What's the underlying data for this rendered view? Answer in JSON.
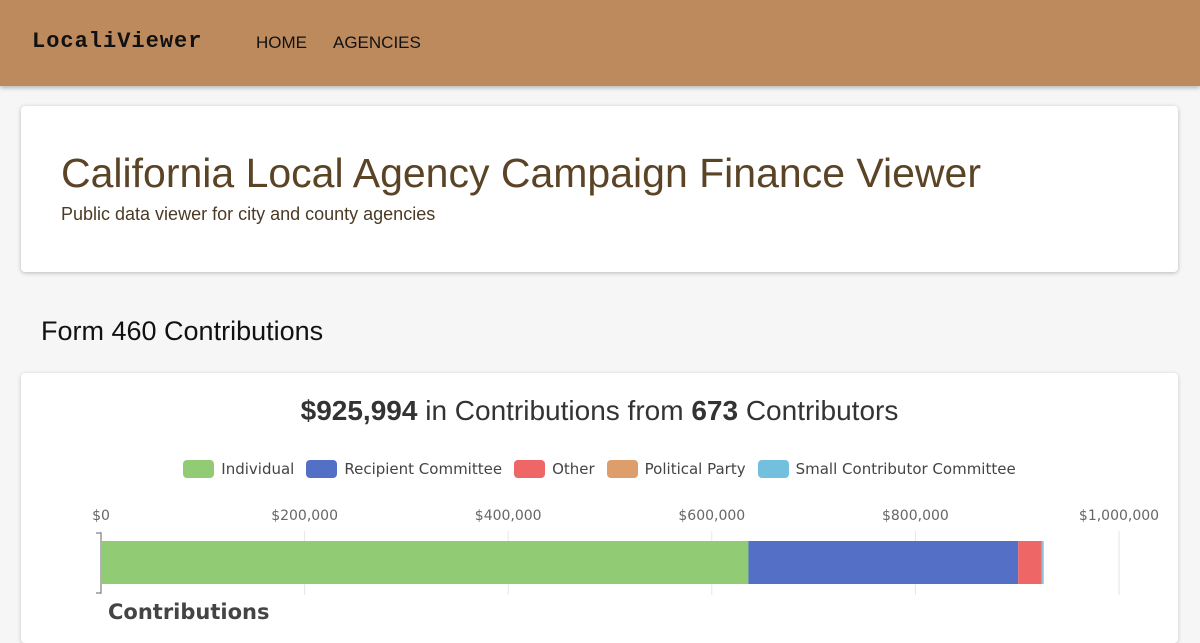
{
  "app": {
    "brand": "LocaliViewer"
  },
  "nav": {
    "items": [
      {
        "label": "HOME"
      },
      {
        "label": "AGENCIES"
      }
    ]
  },
  "hero": {
    "title": "California Local Agency Campaign Finance Viewer",
    "subtitle": "Public data viewer for city and county agencies"
  },
  "section": {
    "title": "Form 460 Contributions"
  },
  "summary": {
    "total": "$925,994",
    "mid": " in Contributions from ",
    "count": "673",
    "end": " Contributors"
  },
  "chart_data": {
    "type": "bar",
    "orientation": "horizontal",
    "stacked": true,
    "categories": [
      "Contributions"
    ],
    "series": [
      {
        "name": "Individual",
        "values": [
          636000
        ],
        "color": "#91cc75"
      },
      {
        "name": "Recipient Committee",
        "values": [
          265000
        ],
        "color": "#5470c6"
      },
      {
        "name": "Other",
        "values": [
          23000
        ],
        "color": "#ee6666"
      },
      {
        "name": "Political Party",
        "values": [
          500
        ],
        "color": "#dd9e6c"
      },
      {
        "name": "Small Contributor Committee",
        "values": [
          1500
        ],
        "color": "#73c0de"
      }
    ],
    "xlim": [
      0,
      1000000
    ],
    "xticks": [
      "$0",
      "$200,000",
      "$400,000",
      "$600,000",
      "$800,000",
      "$1,000,000"
    ],
    "xtick_values": [
      0,
      200000,
      400000,
      600000,
      800000,
      1000000
    ],
    "ylabel": "Contributions",
    "legend_position": "top-center",
    "grid": true
  }
}
